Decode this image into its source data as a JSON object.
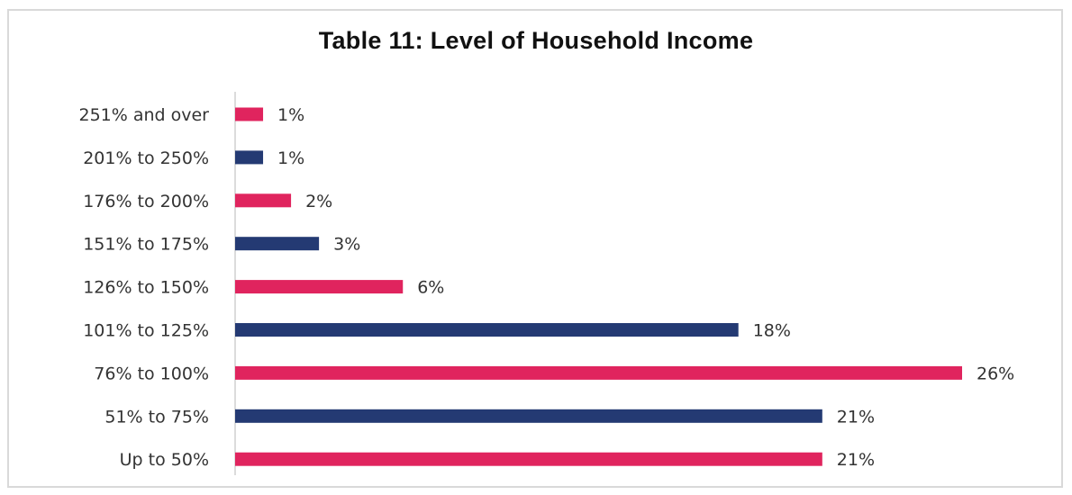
{
  "chart_data": {
    "type": "bar",
    "orientation": "horizontal",
    "title": "Table 11: Level of Household Income",
    "categories": [
      "251% and over",
      "201% to 250%",
      "176% to 200%",
      "151% to 175%",
      "126% to 150%",
      "101% to 125%",
      "76% to 100%",
      "51% to 75%",
      "Up to 50%"
    ],
    "values": [
      1,
      1,
      2,
      3,
      6,
      18,
      26,
      21,
      21
    ],
    "value_labels": [
      "1%",
      "1%",
      "2%",
      "3%",
      "6%",
      "18%",
      "26%",
      "21%",
      "21%"
    ],
    "bar_colors": [
      "#e0245e",
      "#243a73",
      "#e0245e",
      "#243a73",
      "#e0245e",
      "#243a73",
      "#e0245e",
      "#243a73",
      "#e0245e"
    ],
    "xlim": [
      0,
      26
    ],
    "grid": false,
    "legend": "none"
  }
}
